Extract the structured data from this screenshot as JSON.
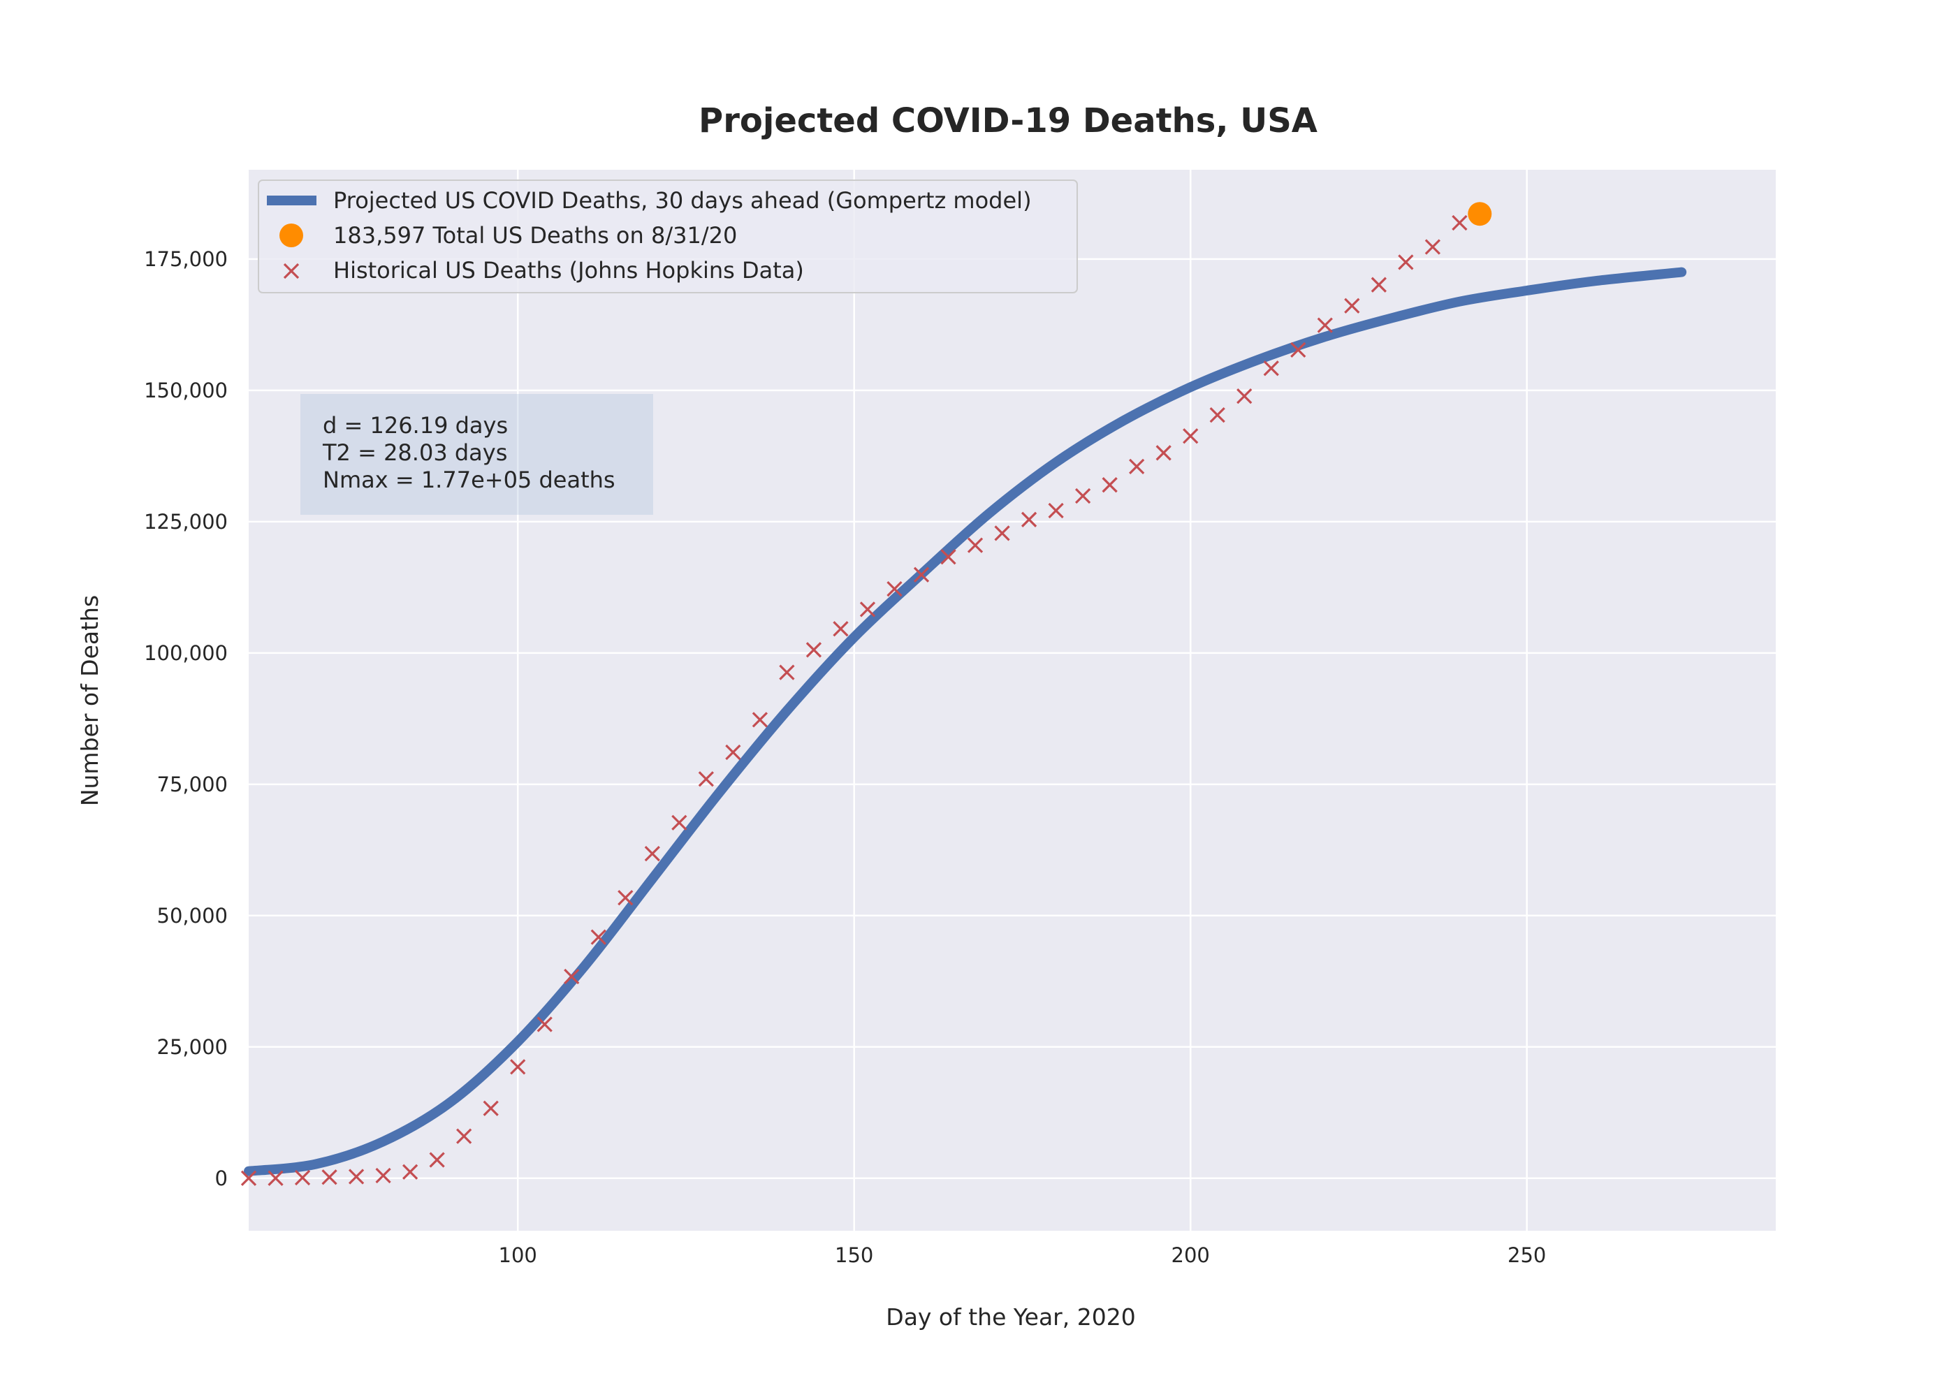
{
  "chart_data": {
    "type": "line",
    "title": "Projected COVID-19 Deaths, USA",
    "xlabel": "Day of the Year, 2020",
    "ylabel": "Number of Deaths",
    "xlim": [
      60,
      287
    ],
    "ylim": [
      -10000,
      192000
    ],
    "x_ticks": [
      100,
      150,
      200,
      250
    ],
    "y_ticks": [
      0,
      25000,
      50000,
      75000,
      100000,
      125000,
      150000,
      175000
    ],
    "y_tick_labels": [
      "0",
      "25,000",
      "50,000",
      "75,000",
      "100,000",
      "125,000",
      "150,000",
      "175,000"
    ],
    "grid": true,
    "legend_position": "top-left",
    "colors": {
      "background": "#eaeaf2",
      "grid": "#ffffff",
      "projection": "#4c72b0",
      "total_point": "#ff8c00",
      "historical": "#c44e52"
    },
    "series": [
      {
        "name": "Projected US COVID Deaths, 30 days ahead (Gompertz model)",
        "kind": "line",
        "model": "gompertz",
        "x_range": [
          60,
          273
        ],
        "points": [
          [
            60,
            1350
          ],
          [
            70,
            2700
          ],
          [
            80,
            7000
          ],
          [
            90,
            14500
          ],
          [
            100,
            26000
          ],
          [
            110,
            40500
          ],
          [
            120,
            57000
          ],
          [
            130,
            73500
          ],
          [
            140,
            89000
          ],
          [
            150,
            103000
          ],
          [
            160,
            115000
          ],
          [
            170,
            126500
          ],
          [
            180,
            136300
          ],
          [
            190,
            144200
          ],
          [
            200,
            150600
          ],
          [
            210,
            155800
          ],
          [
            220,
            160200
          ],
          [
            230,
            163800
          ],
          [
            240,
            166900
          ],
          [
            250,
            169000
          ],
          [
            260,
            170800
          ],
          [
            273,
            172500
          ]
        ]
      },
      {
        "name": "183,597 Total US Deaths on 8/31/20",
        "kind": "point",
        "points": [
          [
            243,
            183597
          ]
        ]
      },
      {
        "name": "Historical US Deaths (Johns Hopkins Data)",
        "kind": "scatter",
        "points": [
          [
            60,
            0
          ],
          [
            64,
            0
          ],
          [
            68,
            100
          ],
          [
            72,
            200
          ],
          [
            76,
            300
          ],
          [
            80,
            500
          ],
          [
            84,
            1200
          ],
          [
            88,
            3500
          ],
          [
            92,
            8000
          ],
          [
            96,
            13300
          ],
          [
            100,
            21200
          ],
          [
            104,
            29300
          ],
          [
            108,
            38400
          ],
          [
            112,
            45900
          ],
          [
            116,
            53400
          ],
          [
            120,
            61800
          ],
          [
            124,
            67700
          ],
          [
            128,
            76000
          ],
          [
            132,
            81100
          ],
          [
            136,
            87300
          ],
          [
            140,
            96300
          ],
          [
            144,
            100600
          ],
          [
            148,
            104600
          ],
          [
            152,
            108300
          ],
          [
            156,
            112200
          ],
          [
            160,
            114900
          ],
          [
            164,
            118300
          ],
          [
            168,
            120500
          ],
          [
            172,
            122800
          ],
          [
            176,
            125400
          ],
          [
            180,
            127100
          ],
          [
            184,
            129900
          ],
          [
            188,
            132000
          ],
          [
            192,
            135500
          ],
          [
            196,
            138100
          ],
          [
            200,
            141300
          ],
          [
            204,
            145300
          ],
          [
            208,
            148900
          ],
          [
            212,
            154200
          ],
          [
            216,
            157700
          ],
          [
            220,
            162400
          ],
          [
            224,
            166100
          ],
          [
            228,
            170100
          ],
          [
            232,
            174400
          ],
          [
            236,
            177300
          ],
          [
            240,
            181900
          ]
        ]
      }
    ],
    "stats_box": {
      "lines": [
        "d = 126.19 days",
        "T2 = 28.03 days",
        "Nmax = 1.77e+05 deaths"
      ]
    }
  }
}
